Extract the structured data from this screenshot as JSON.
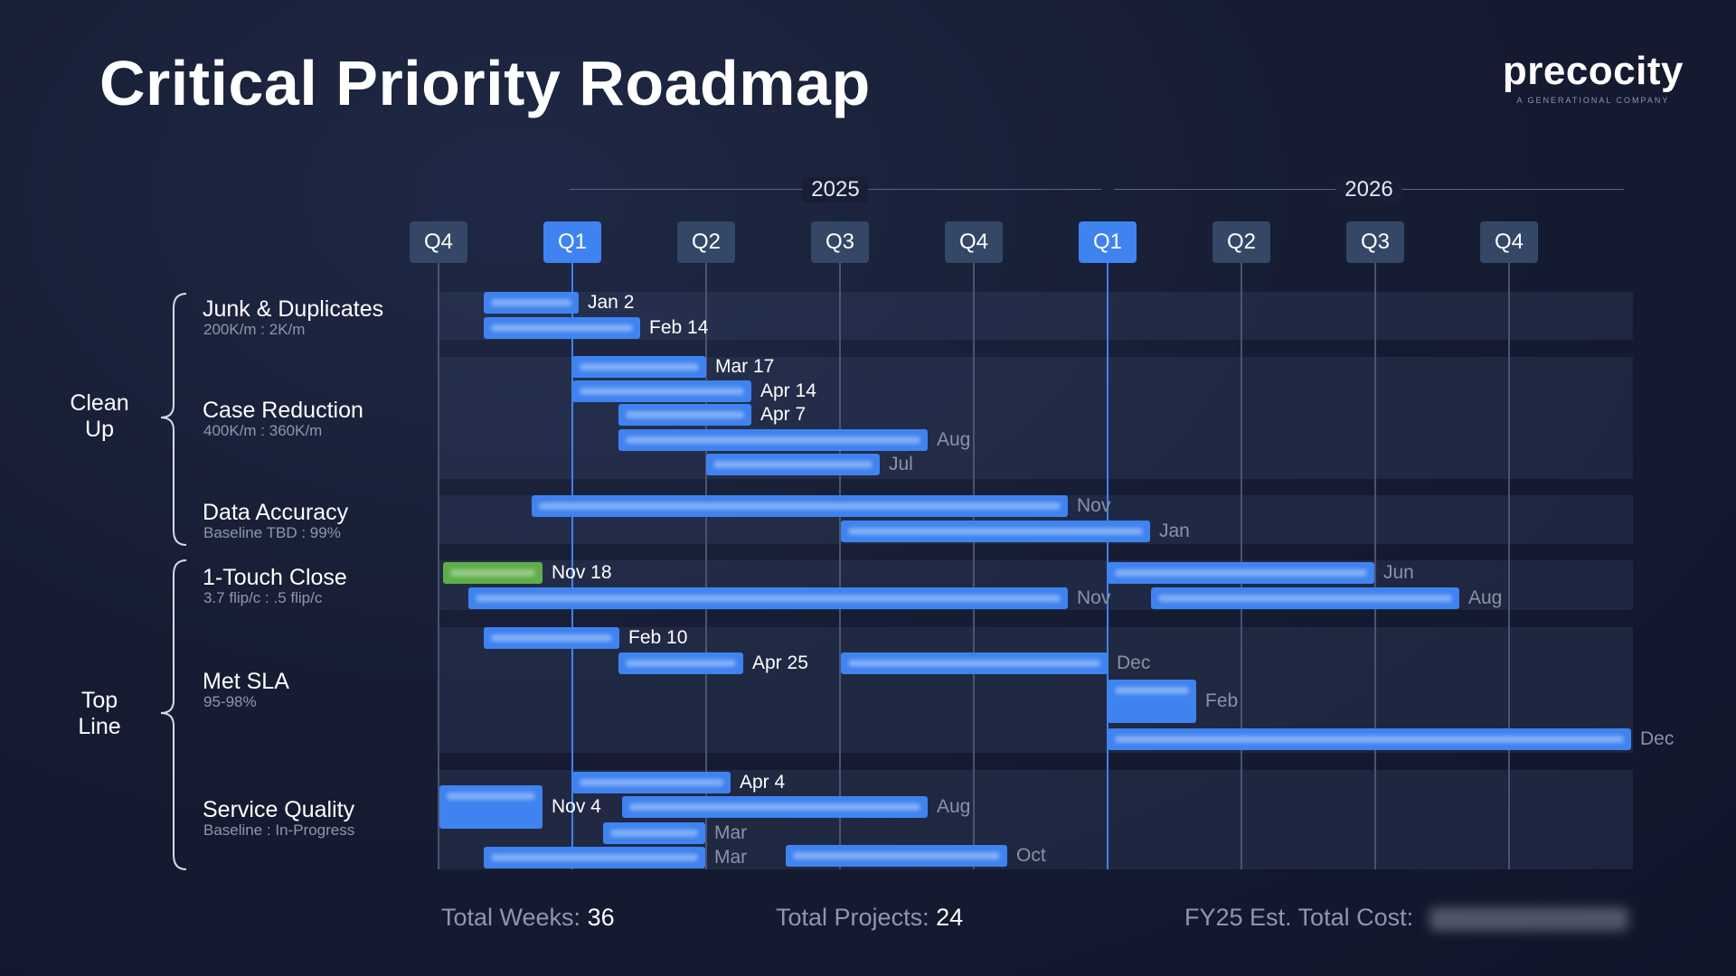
{
  "title": "Critical Priority Roadmap",
  "brand": {
    "name": "precocity",
    "tagline": "A GENERATIONAL COMPANY"
  },
  "years": [
    "2025",
    "2026"
  ],
  "quarters": [
    {
      "label": "Q4",
      "highlight": false
    },
    {
      "label": "Q1",
      "highlight": true
    },
    {
      "label": "Q2",
      "highlight": false
    },
    {
      "label": "Q3",
      "highlight": false
    },
    {
      "label": "Q4",
      "highlight": false
    },
    {
      "label": "Q1",
      "highlight": true
    },
    {
      "label": "Q2",
      "highlight": false
    },
    {
      "label": "Q3",
      "highlight": false
    },
    {
      "label": "Q4",
      "highlight": false
    }
  ],
  "groups": [
    {
      "label": "Clean Up"
    },
    {
      "label": "Top Line"
    }
  ],
  "rows": [
    {
      "title": "Junk & Duplicates",
      "subtitle": "200K/m : 2K/m"
    },
    {
      "title": "Case Reduction",
      "subtitle": "400K/m : 360K/m"
    },
    {
      "title": "Data Accuracy",
      "subtitle": "Baseline TBD : 99%"
    },
    {
      "title": "1-Touch Close",
      "subtitle": "3.7 flip/c : .5 flip/c"
    },
    {
      "title": "Met SLA",
      "subtitle": "95-98%"
    },
    {
      "title": "Service Quality",
      "subtitle": "Baseline : In-Progress"
    }
  ],
  "bars": [
    {
      "row": 0,
      "end_label": "Jan 2",
      "color": "blue",
      "end_style": "bright"
    },
    {
      "row": 0,
      "end_label": "Feb 14",
      "color": "blue",
      "end_style": "bright"
    },
    {
      "row": 1,
      "end_label": "Mar 17",
      "color": "blue",
      "end_style": "bright"
    },
    {
      "row": 1,
      "end_label": "Apr 14",
      "color": "blue",
      "end_style": "bright"
    },
    {
      "row": 1,
      "end_label": "Apr 7",
      "color": "blue",
      "end_style": "bright"
    },
    {
      "row": 1,
      "end_label": "Aug",
      "color": "blue",
      "end_style": "muted"
    },
    {
      "row": 1,
      "end_label": "Jul",
      "color": "blue",
      "end_style": "muted"
    },
    {
      "row": 2,
      "end_label": "Nov",
      "color": "blue",
      "end_style": "muted"
    },
    {
      "row": 2,
      "end_label": "Jan",
      "color": "blue",
      "end_style": "muted"
    },
    {
      "row": 3,
      "end_label": "Nov 18",
      "color": "green",
      "end_style": "bright"
    },
    {
      "row": 3,
      "end_label": "Nov",
      "color": "blue",
      "end_style": "muted"
    },
    {
      "row": 3,
      "end_label": "Jun",
      "color": "blue",
      "end_style": "muted"
    },
    {
      "row": 3,
      "end_label": "Aug",
      "color": "blue",
      "end_style": "muted"
    },
    {
      "row": 4,
      "end_label": "Feb 10",
      "color": "blue",
      "end_style": "bright"
    },
    {
      "row": 4,
      "end_label": "Apr 25",
      "color": "blue",
      "end_style": "bright"
    },
    {
      "row": 4,
      "end_label": "Dec",
      "color": "blue",
      "end_style": "muted"
    },
    {
      "row": 4,
      "end_label": "Feb",
      "color": "blue",
      "end_style": "muted"
    },
    {
      "row": 4,
      "end_label": "Dec",
      "color": "blue",
      "end_style": "muted"
    },
    {
      "row": 5,
      "end_label": "Apr 4",
      "color": "blue",
      "end_style": "bright"
    },
    {
      "row": 5,
      "end_label": "Nov 4",
      "color": "blue",
      "end_style": "bright"
    },
    {
      "row": 5,
      "end_label": "Aug",
      "color": "blue",
      "end_style": "muted"
    },
    {
      "row": 5,
      "end_label": "Mar",
      "color": "blue",
      "end_style": "muted"
    },
    {
      "row": 5,
      "end_label": "Mar",
      "color": "blue",
      "end_style": "muted"
    },
    {
      "row": 5,
      "end_label": "Oct",
      "color": "blue",
      "end_style": "muted"
    }
  ],
  "footer": {
    "weeks_label": "Total Weeks:",
    "weeks_value": "36",
    "projects_label": "Total Projects:",
    "projects_value": "24",
    "cost_label": "FY25 Est. Total Cost:"
  },
  "colors": {
    "bar_blue": "#3f83f0",
    "bar_green": "#5fae4a",
    "quarter_badge": "#344767",
    "quarter_highlight": "#3f83f0",
    "background": "#161d33"
  }
}
